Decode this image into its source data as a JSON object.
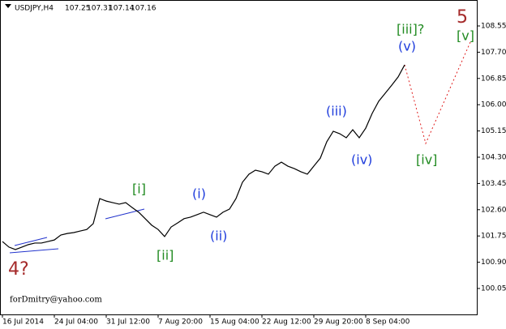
{
  "chart_data": {
    "type": "line",
    "title": "USDJPY,H4",
    "quote": [
      107.25,
      107.31,
      107.14,
      107.16
    ],
    "footer": "forDmitry@yahoo.com",
    "categories": [
      "16 Jul 2014",
      null,
      null,
      null,
      null,
      null,
      null,
      null,
      "24 Jul 04:00",
      null,
      null,
      null,
      null,
      null,
      null,
      null,
      "31 Jul 12:00",
      null,
      null,
      null,
      null,
      null,
      null,
      null,
      "7 Aug 20:00",
      null,
      null,
      null,
      null,
      null,
      null,
      null,
      "15 Aug 04:00",
      null,
      null,
      null,
      null,
      null,
      null,
      null,
      "22 Aug 12:00",
      null,
      null,
      null,
      null,
      null,
      null,
      null,
      "29 Aug 20:00",
      null,
      null,
      null,
      null,
      null,
      null,
      null,
      "8 Sep 04:00",
      null,
      null,
      null,
      null,
      null,
      null
    ],
    "series": [
      {
        "color": "#000000",
        "values": [
          101.57,
          101.39,
          101.31,
          101.39,
          101.47,
          101.52,
          101.52,
          101.57,
          101.62,
          101.78,
          101.83,
          101.86,
          101.91,
          101.96,
          102.15,
          102.96,
          102.88,
          102.83,
          102.78,
          102.83,
          102.67,
          102.52,
          102.31,
          102.1,
          101.96,
          101.73,
          102.04,
          102.17,
          102.31,
          102.36,
          102.44,
          102.52,
          102.44,
          102.36,
          102.52,
          102.62,
          102.96,
          103.49,
          103.75,
          103.88,
          103.83,
          103.75,
          104.01,
          104.14,
          104.01,
          103.93,
          103.83,
          103.75,
          104.01,
          104.27,
          104.8,
          105.14,
          105.06,
          104.93,
          105.19,
          104.93,
          105.24,
          105.72,
          106.11,
          106.37,
          106.63,
          106.9,
          107.29
        ]
      }
    ],
    "ylim": [
      99.21,
      109.39
    ],
    "yticks": [
      {
        "value": 108.55,
        "label": "108.55"
      },
      {
        "value": 107.7,
        "label": "107.70"
      },
      106.85,
      {
        "value": 106,
        "label": "106.00"
      },
      105.15,
      {
        "value": 104.3,
        "label": "104.30"
      },
      103.45,
      {
        "value": 102.6,
        "label": "102.60"
      },
      101.75,
      {
        "value": 100.9,
        "label": "100.90"
      },
      100.05
    ],
    "annotations": [
      {
        "text": "4?",
        "color": "#a52a2a"
      },
      {
        "text": "[i]",
        "color": "#228b22"
      },
      {
        "text": "[ii]",
        "color": "#228b22"
      },
      {
        "text": "(i)",
        "color": "#1e3cdc"
      },
      {
        "text": "(ii)",
        "color": "#1e3cdc"
      },
      {
        "text": "(iii)",
        "color": "#1e3cdc"
      },
      {
        "text": "(iv)",
        "color": "#1e3cdc"
      },
      {
        "text": "(v)",
        "color": "#1e3cdc"
      },
      {
        "text": "[iii]?",
        "color": "#228b22"
      },
      {
        "text": "5",
        "color": "#a52a2a"
      },
      {
        "text": "[v]",
        "color": "#228b22"
      },
      {
        "text": "[iv]",
        "color": "#228b22"
      }
    ]
  }
}
